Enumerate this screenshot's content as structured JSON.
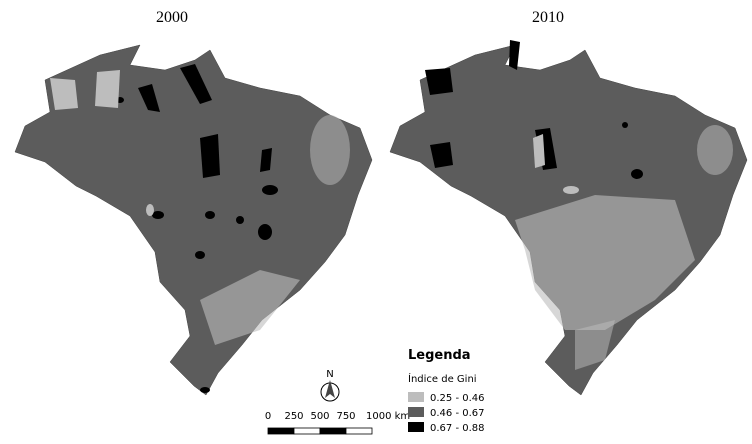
{
  "maps": [
    {
      "title": "2000"
    },
    {
      "title": "2010"
    }
  ],
  "legend": {
    "title": "Legenda",
    "subtitle": "Índice de Gini",
    "items": [
      {
        "label": "0.25 - 0.46",
        "color": "#bdbdbd"
      },
      {
        "label": "0.46 - 0.67",
        "color": "#5c5c5c"
      },
      {
        "label": "0.67 - 0.88",
        "color": "#000000"
      }
    ]
  },
  "scale_bar": {
    "labels": [
      "0",
      "250",
      "500",
      "750",
      "1000 km"
    ]
  },
  "north_arrow": {
    "label": "N"
  }
}
